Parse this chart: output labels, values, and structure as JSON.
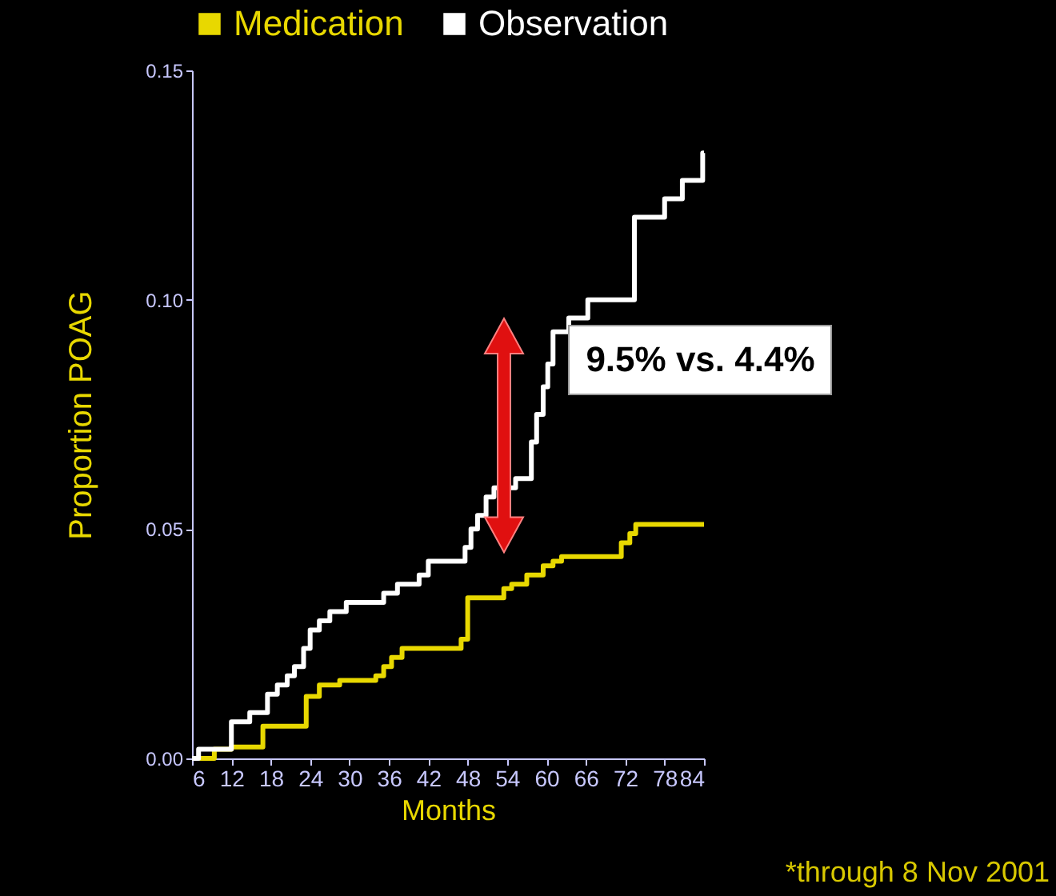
{
  "chart_data": {
    "type": "step",
    "xlabel": "Months",
    "ylabel": "Proportion POAG",
    "series": [
      {
        "name": "Medication",
        "color": "#e8d800",
        "x": [
          6,
          9.4,
          12,
          16.8,
          23.4,
          25.4,
          28.5,
          34,
          35.2,
          36.4,
          38,
          47,
          48,
          53.5,
          54.7,
          57,
          59.5,
          61,
          62.3,
          71.4,
          72.7,
          73.6,
          84
        ],
        "values": [
          0,
          0.002,
          0.0025,
          0.007,
          0.0135,
          0.016,
          0.017,
          0.018,
          0.02,
          0.022,
          0.024,
          0.026,
          0.035,
          0.037,
          0.038,
          0.04,
          0.042,
          0.043,
          0.044,
          0.047,
          0.049,
          0.051,
          0.051
        ]
      },
      {
        "name": "Observation",
        "color": "#ffffff",
        "x": [
          6,
          7,
          11,
          12,
          14.8,
          17.5,
          19,
          20.5,
          21.6,
          23,
          24,
          25.4,
          27,
          29.5,
          35.2,
          37.3,
          40.6,
          42,
          47.6,
          48.5,
          49.5,
          50.8,
          52,
          55.3,
          57.7,
          58.5,
          59.5,
          60.2,
          61,
          63.4,
          66.3,
          70.7,
          73.4,
          78,
          80.7,
          83.8,
          84
        ],
        "values": [
          0,
          0.002,
          0.002,
          0.008,
          0.01,
          0.014,
          0.016,
          0.018,
          0.02,
          0.024,
          0.028,
          0.03,
          0.032,
          0.034,
          0.036,
          0.038,
          0.04,
          0.043,
          0.046,
          0.05,
          0.053,
          0.057,
          0.059,
          0.061,
          0.069,
          0.075,
          0.081,
          0.086,
          0.093,
          0.096,
          0.1,
          0.1,
          0.118,
          0.122,
          0.126,
          0.132,
          0.132
        ]
      }
    ],
    "xlim": [
      6,
      84
    ],
    "xticks": [
      6,
      12,
      18,
      24,
      30,
      36,
      42,
      48,
      54,
      60,
      66,
      72,
      78,
      84
    ],
    "ylim": [
      0,
      0.15
    ],
    "yticks": [
      {
        "value": 0,
        "label": "0.00"
      },
      {
        "value": 0.05,
        "label": "0.05"
      },
      {
        "value": 0.1,
        "label": "0.10"
      },
      {
        "value": 0.15,
        "label": "0.15"
      }
    ],
    "legend": "top",
    "grid": false,
    "annotations": [
      "9.5% vs. 4.4%",
      "*through 8 Nov 2001"
    ]
  }
}
